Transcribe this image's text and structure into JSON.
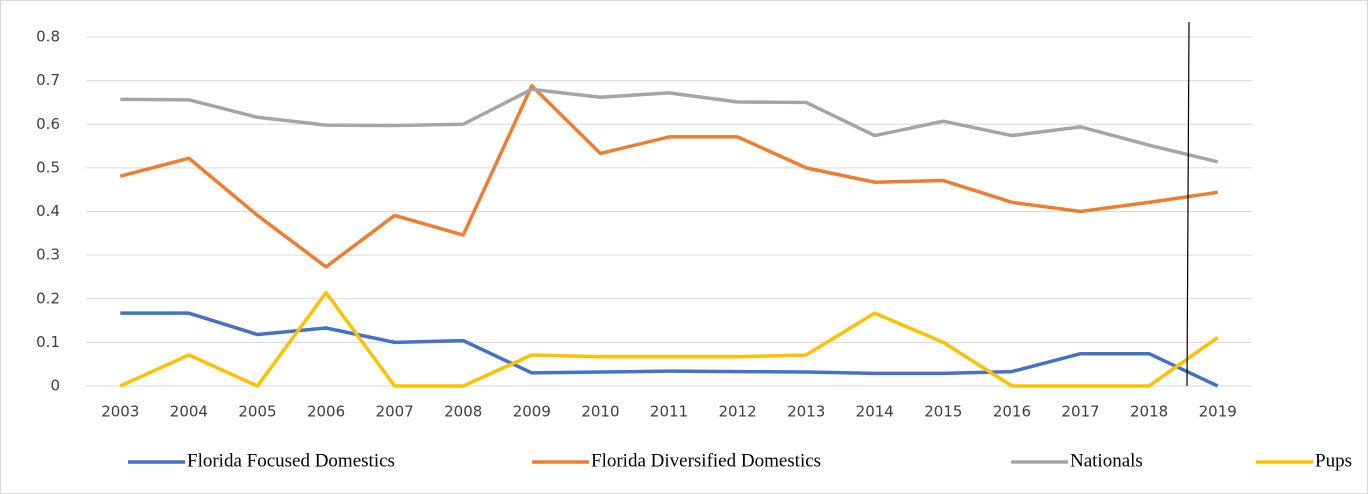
{
  "chart_data": {
    "type": "line",
    "categories": [
      "2003",
      "2004",
      "2005",
      "2006",
      "2007",
      "2008",
      "2009",
      "2010",
      "2011",
      "2012",
      "2013",
      "2014",
      "2015",
      "2016",
      "2017",
      "2018",
      "2019"
    ],
    "series": [
      {
        "name": "Florida Focused Domestics",
        "color": "#4472c4",
        "values": [
          0.167,
          0.167,
          0.118,
          0.133,
          0.1,
          0.104,
          0.03,
          0.032,
          0.034,
          0.033,
          0.032,
          0.029,
          0.029,
          0.033,
          0.074,
          0.074,
          0
        ]
      },
      {
        "name": "Florida Diversified Domestics",
        "color": "#ed7d31",
        "values": [
          0.481,
          0.522,
          0.391,
          0.273,
          0.391,
          0.346,
          0.688,
          0.533,
          0.571,
          0.571,
          0.5,
          0.467,
          0.471,
          0.421,
          0.4,
          0.421,
          0.444
        ]
      },
      {
        "name": "Nationals",
        "color": "#a5a5a5",
        "values": [
          0.657,
          0.656,
          0.616,
          0.598,
          0.597,
          0.6,
          0.68,
          0.662,
          0.672,
          0.651,
          0.65,
          0.574,
          0.607,
          0.574,
          0.594,
          0.552,
          0.514
        ]
      },
      {
        "name": "Pups",
        "color": "#ffc000",
        "values": [
          0,
          0.071,
          0,
          0.214,
          0,
          0,
          0.071,
          0.067,
          0.067,
          0.067,
          0.071,
          0.167,
          0.1,
          0,
          0,
          0,
          0.111
        ]
      }
    ],
    "ylim": [
      0,
      0.8
    ],
    "yticks": [
      0,
      0.1,
      0.2,
      0.3,
      0.4,
      0.5,
      0.6,
      0.7,
      0.8
    ],
    "grid": true,
    "legend": "bottom"
  }
}
